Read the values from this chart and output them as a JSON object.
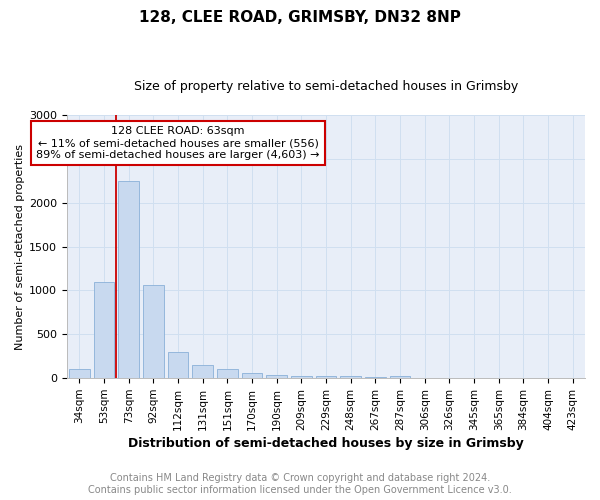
{
  "title": "128, CLEE ROAD, GRIMSBY, DN32 8NP",
  "subtitle": "Size of property relative to semi-detached houses in Grimsby",
  "xlabel": "Distribution of semi-detached houses by size in Grimsby",
  "ylabel": "Number of semi-detached properties",
  "footnote1": "Contains HM Land Registry data © Crown copyright and database right 2024.",
  "footnote2": "Contains public sector information licensed under the Open Government Licence v3.0.",
  "categories": [
    "34sqm",
    "53sqm",
    "73sqm",
    "92sqm",
    "112sqm",
    "131sqm",
    "151sqm",
    "170sqm",
    "190sqm",
    "209sqm",
    "229sqm",
    "248sqm",
    "267sqm",
    "287sqm",
    "306sqm",
    "326sqm",
    "345sqm",
    "365sqm",
    "384sqm",
    "404sqm",
    "423sqm"
  ],
  "values": [
    110,
    1100,
    2250,
    1060,
    300,
    155,
    100,
    55,
    40,
    25,
    30,
    20,
    15,
    25,
    0,
    0,
    0,
    0,
    0,
    0,
    0
  ],
  "bar_color": "#c8d9ef",
  "bar_edge_color": "#8ab0d8",
  "property_line_x": 1.5,
  "annotation_line1": "128 CLEE ROAD: 63sqm",
  "annotation_line2": "← 11% of semi-detached houses are smaller (556)",
  "annotation_line3": "89% of semi-detached houses are larger (4,603) →",
  "annotation_box_facecolor": "#ffffff",
  "annotation_box_edgecolor": "#cc0000",
  "property_line_color": "#cc0000",
  "ylim": [
    0,
    3000
  ],
  "yticks": [
    0,
    500,
    1000,
    1500,
    2000,
    2500,
    3000
  ],
  "grid_color": "#d0dff0",
  "bg_color": "#e8eef8",
  "title_fontsize": 11,
  "subtitle_fontsize": 9,
  "xlabel_fontsize": 9,
  "ylabel_fontsize": 8,
  "tick_fontsize": 8,
  "footnote_fontsize": 7,
  "footnote_color": "#888888"
}
